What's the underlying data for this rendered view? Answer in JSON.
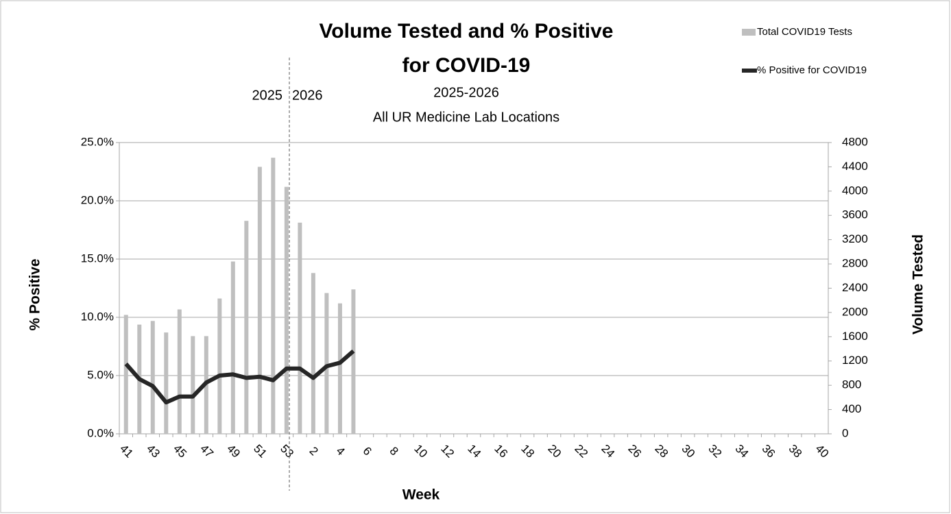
{
  "chart_data": {
    "type": "combo",
    "title": [
      "Volume Tested and % Positive",
      "for COVID-19"
    ],
    "subtitle": [
      "2025-2026",
      "All UR Medicine Lab Locations"
    ],
    "annotations": [
      "2025",
      "2026"
    ],
    "x_label": "Week",
    "y_label": "% Positive",
    "y2_label": "Volume Tested",
    "categories": [
      "41",
      null,
      "43",
      null,
      "45",
      null,
      "47",
      null,
      "49",
      null,
      "51",
      null,
      "53",
      null,
      "2",
      null,
      "4",
      null,
      "6",
      null,
      "8",
      null,
      "10",
      null,
      "12",
      null,
      "14",
      null,
      "16",
      null,
      "18",
      null,
      "20",
      null,
      "22",
      null,
      "24",
      null,
      "26",
      null,
      "28",
      null,
      "30",
      null,
      "32",
      null,
      "34",
      null,
      "36",
      null,
      "38",
      null,
      "40"
    ],
    "series": [
      {
        "name": "Total COVID19 Tests",
        "type": "bar",
        "axis": "y2",
        "color": "#bfbfbf",
        "values": [
          1960,
          1800,
          1860,
          1670,
          2050,
          1610,
          1610,
          2230,
          2840,
          3510,
          4400,
          4550,
          4070,
          3480,
          2650,
          2320,
          2150,
          2380,
          null,
          null,
          null,
          null,
          null,
          null,
          null,
          null,
          null,
          null,
          null,
          null,
          null,
          null,
          null,
          null,
          null,
          null,
          null,
          null,
          null,
          null,
          null,
          null,
          null,
          null,
          null,
          null,
          null,
          null,
          null,
          null,
          null,
          null,
          null
        ]
      },
      {
        "name": "% Positive for COVID19",
        "type": "line",
        "color": "#262626",
        "values": [
          6.0,
          4.7,
          4.1,
          2.7,
          3.2,
          3.2,
          4.4,
          5.0,
          5.1,
          4.8,
          4.9,
          4.6,
          5.6,
          5.6,
          4.8,
          5.8,
          6.1,
          7.1,
          null,
          null,
          null,
          null,
          null,
          null,
          null,
          null,
          null,
          null,
          null,
          null,
          null,
          null,
          null,
          null,
          null,
          null,
          null,
          null,
          null,
          null,
          null,
          null,
          null,
          null,
          null,
          null,
          null,
          null,
          null,
          null,
          null,
          null,
          null
        ]
      }
    ],
    "ylim": [
      0,
      25
    ],
    "yticks": [
      {
        "value": 0,
        "label": "0.0%"
      },
      {
        "value": 5,
        "label": "5.0%"
      },
      {
        "value": 10,
        "label": "10.0%"
      },
      {
        "value": 15,
        "label": "15.0%"
      },
      {
        "value": 20,
        "label": "20.0%"
      },
      {
        "value": 25,
        "label": "25.0%"
      }
    ],
    "y2lim": [
      0,
      4800
    ],
    "y2ticks": [
      0,
      400,
      800,
      1200,
      1600,
      2000,
      2400,
      2800,
      3200,
      3600,
      4000,
      4400,
      4800
    ],
    "grid": true,
    "legend": "top-right"
  }
}
